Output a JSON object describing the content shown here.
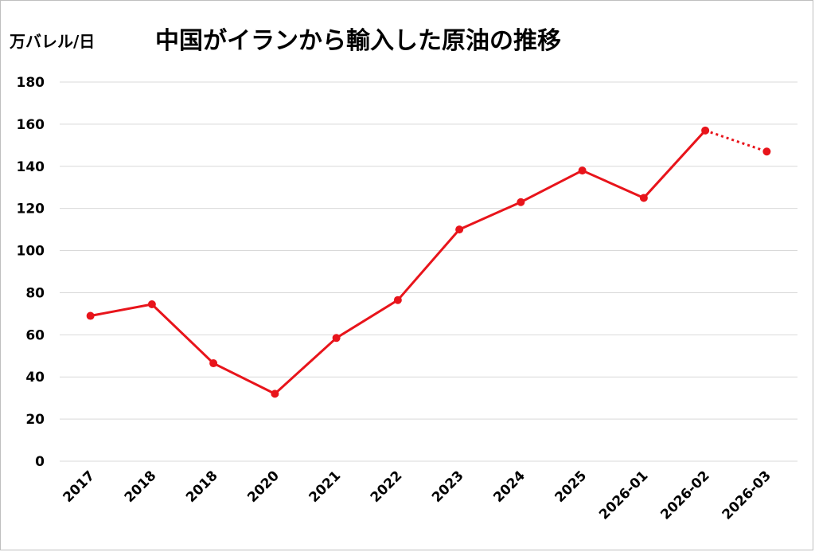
{
  "header": {
    "unit": "万バレル/日",
    "title": "中国がイランから輸入した原油の推移"
  },
  "chart_data": {
    "type": "line",
    "title": "中国がイランから輸入した原油の推移",
    "ylabel": "万バレル/日",
    "xlabel": "",
    "categories": [
      "2017",
      "2018",
      "2018",
      "2020",
      "2021",
      "2022",
      "2023",
      "2024",
      "2025",
      "2026-01",
      "2026-02",
      "2026-03"
    ],
    "series": [
      {
        "values": [
          69,
          74.5,
          46.5,
          32,
          58.5,
          76.5,
          110,
          123,
          138,
          125,
          157,
          147
        ],
        "color": "#e8141b",
        "dotted_from_index": 10
      }
    ],
    "ylim": [
      0,
      180
    ],
    "yticks": [
      0,
      20,
      40,
      60,
      80,
      100,
      120,
      140,
      160,
      180
    ],
    "grid": true,
    "legend": "none"
  }
}
